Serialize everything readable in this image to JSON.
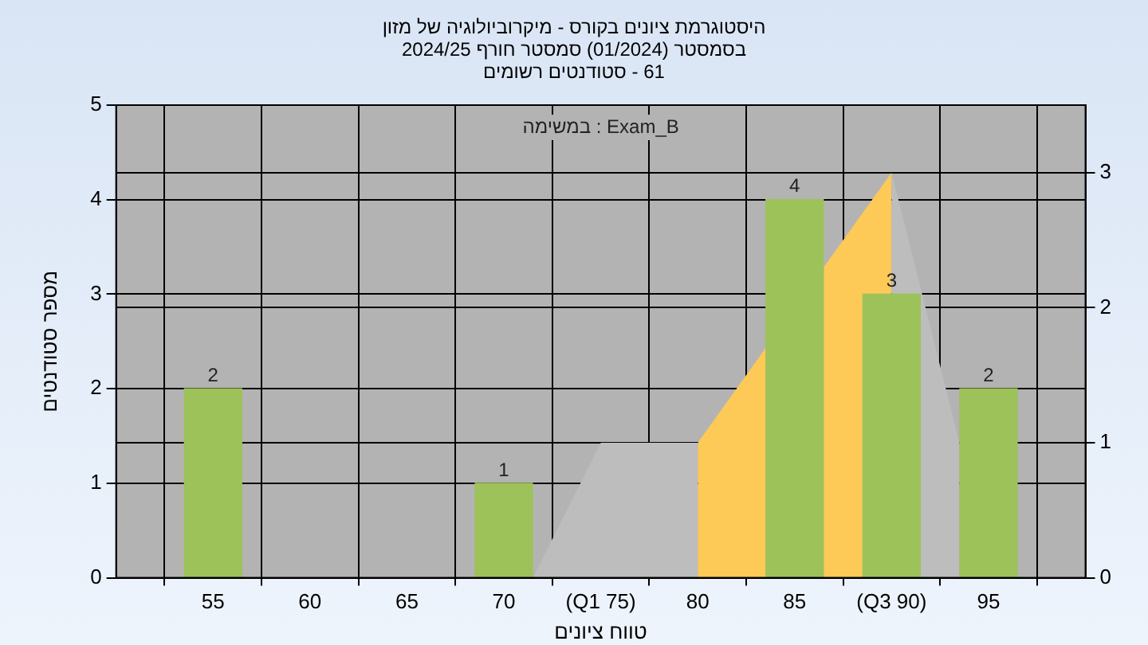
{
  "chart_data": {
    "type": "bar",
    "title": "היסטוגרמת ציונים בקורס - מיקרוביולוגיה של מזון",
    "subtitle": "בסמסטר  (01/2024)  סמסטר חורף 2024/25\n61 - סטודנטים רשומים",
    "xlabel": "טווח ציונים",
    "ylabel": "מספר סטודנטים",
    "annotations": [
      "במשימה : Exam_B"
    ],
    "xlim": [
      50,
      100
    ],
    "xticks": [
      55,
      60,
      65,
      70,
      {
        "value": 75,
        "label": "(Q1 75)"
      },
      80,
      85,
      {
        "value": 90,
        "label": "(Q3 90)"
      },
      95
    ],
    "ylim": [
      0,
      5
    ],
    "yticks": [
      0,
      1,
      2,
      3,
      4,
      5
    ],
    "y2lim": [
      0,
      3.5
    ],
    "y2ticks": [
      0,
      1,
      2,
      3
    ],
    "grid": true,
    "legend": false,
    "series": [
      {
        "color": "#9dc25a",
        "x": [
          55,
          70,
          85,
          90,
          95
        ],
        "values": [
          2,
          1,
          4,
          3,
          2
        ],
        "value_labels": [
          "2",
          "1",
          "4",
          "3",
          "2"
        ]
      },
      {
        "type": "area",
        "axis": "y2",
        "color": "#bdbdbd",
        "x": [
          71.5,
          75,
          80
        ],
        "values": [
          0,
          1,
          1
        ]
      },
      {
        "type": "area",
        "axis": "y2",
        "color": "#fdc957",
        "x": [
          80,
          90
        ],
        "values": [
          1,
          3
        ]
      },
      {
        "type": "area",
        "axis": "y2",
        "color": "#bdbdbd",
        "x": [
          90,
          93.5
        ],
        "values": [
          3,
          1
        ]
      }
    ]
  }
}
